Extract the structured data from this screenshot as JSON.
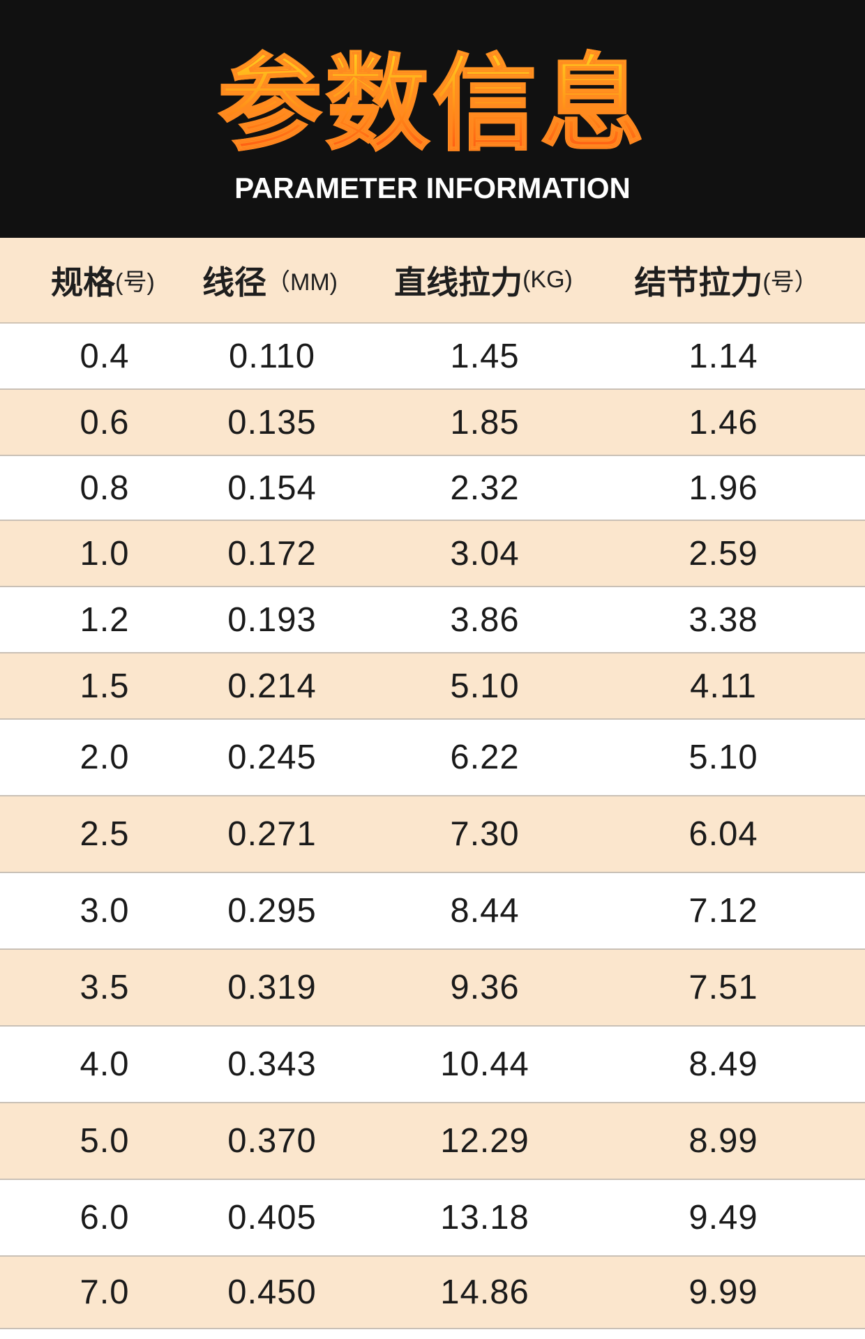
{
  "banner": {
    "title_cn": "参数信息",
    "title_en": "PARAMETER INFORMATION"
  },
  "colors": {
    "banner_bg": "#111111",
    "title_gradient_top": "#ffd21f",
    "title_gradient_bottom": "#ff4f12",
    "row_alt": "#fbe6cd",
    "row_plain": "#ffffff"
  },
  "table": {
    "headers": [
      {
        "main": "规格",
        "unit": "(号)"
      },
      {
        "main": "线径",
        "unit": "（MM)"
      },
      {
        "main": "直线拉力",
        "unit": "(KG)"
      },
      {
        "main": "结节拉力",
        "unit": "(号）"
      }
    ],
    "rows": [
      [
        "0.4",
        "0.110",
        "1.45",
        "1.14"
      ],
      [
        "0.6",
        "0.135",
        "1.85",
        "1.46"
      ],
      [
        "0.8",
        "0.154",
        "2.32",
        "1.96"
      ],
      [
        "1.0",
        "0.172",
        "3.04",
        "2.59"
      ],
      [
        "1.2",
        "0.193",
        "3.86",
        "3.38"
      ],
      [
        "1.5",
        "0.214",
        "5.10",
        "4.11"
      ],
      [
        "2.0",
        "0.245",
        "6.22",
        "5.10"
      ],
      [
        "2.5",
        "0.271",
        "7.30",
        "6.04"
      ],
      [
        "3.0",
        "0.295",
        "8.44",
        "7.12"
      ],
      [
        "3.5",
        "0.319",
        "9.36",
        "7.51"
      ],
      [
        "4.0",
        "0.343",
        "10.44",
        "8.49"
      ],
      [
        "5.0",
        "0.370",
        "12.29",
        "8.99"
      ],
      [
        "6.0",
        "0.405",
        "13.18",
        "9.49"
      ],
      [
        "7.0",
        "0.450",
        "14.86",
        "9.99"
      ]
    ]
  }
}
